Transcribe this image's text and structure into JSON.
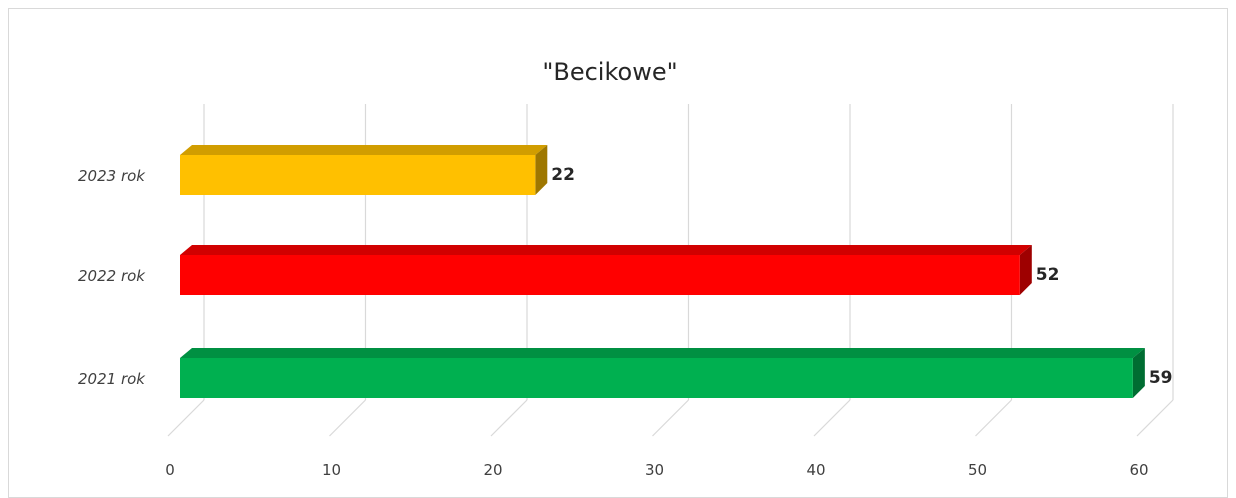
{
  "chart_data": {
    "type": "bar",
    "orientation": "horizontal",
    "style": "3d",
    "title": "\"Becikowe\"",
    "xlabel": "",
    "ylabel": "",
    "categories": [
      "2021 rok",
      "2022 rok",
      "2023 rok"
    ],
    "values": [
      59,
      52,
      22
    ],
    "data_labels": [
      "59",
      "52",
      "22"
    ],
    "colors": [
      "#00b050",
      "#ff0000",
      "#ffc000"
    ],
    "xlim": [
      0,
      60
    ],
    "xticks": [
      "0",
      "10",
      "20",
      "30",
      "40",
      "50",
      "60"
    ],
    "grid": true,
    "legend": "none"
  }
}
